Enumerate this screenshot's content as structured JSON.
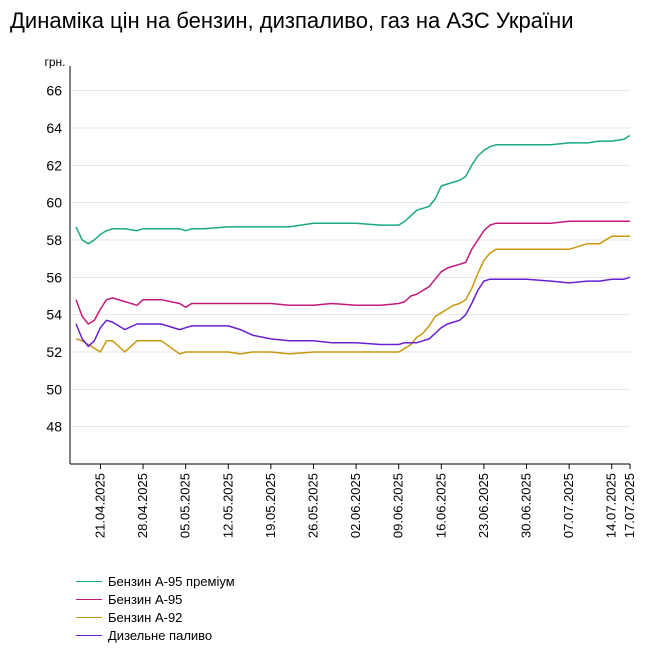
{
  "title": "Динаміка цін на бензин, дизпаливо, газ на АЗС України",
  "chart_data": {
    "type": "line",
    "title": "Динаміка цін на бензин, дизпаливо, газ на АЗС України",
    "ylabel": "грн.",
    "xlabel": "",
    "ylim": [
      46,
      67
    ],
    "yticks": [
      48,
      50,
      52,
      54,
      56,
      58,
      60,
      62,
      64,
      66
    ],
    "xlim": [
      "2025-04-16",
      "2025-07-17"
    ],
    "x_ticks": [
      "21.04.2025",
      "28.04.2025",
      "05.05.2025",
      "12.05.2025",
      "19.05.2025",
      "26.05.2025",
      "02.06.2025",
      "09.06.2025",
      "16.06.2025",
      "23.06.2025",
      "30.06.2025",
      "07.07.2025",
      "14.07.2025",
      "17.07.2025"
    ],
    "grid": "horizontal",
    "legend_position": "bottom",
    "x": [
      "2025-04-17",
      "2025-04-18",
      "2025-04-19",
      "2025-04-20",
      "2025-04-21",
      "2025-04-22",
      "2025-04-23",
      "2025-04-25",
      "2025-04-27",
      "2025-04-28",
      "2025-05-01",
      "2025-05-04",
      "2025-05-05",
      "2025-05-06",
      "2025-05-08",
      "2025-05-12",
      "2025-05-14",
      "2025-05-16",
      "2025-05-19",
      "2025-05-22",
      "2025-05-26",
      "2025-05-29",
      "2025-06-02",
      "2025-06-06",
      "2025-06-09",
      "2025-06-10",
      "2025-06-11",
      "2025-06-12",
      "2025-06-13",
      "2025-06-14",
      "2025-06-15",
      "2025-06-16",
      "2025-06-17",
      "2025-06-18",
      "2025-06-19",
      "2025-06-20",
      "2025-06-21",
      "2025-06-22",
      "2025-06-23",
      "2025-06-24",
      "2025-06-25",
      "2025-06-27",
      "2025-06-30",
      "2025-07-04",
      "2025-07-07",
      "2025-07-10",
      "2025-07-12",
      "2025-07-14",
      "2025-07-16",
      "2025-07-17"
    ],
    "series": [
      {
        "name": "Бензин А-95 преміум",
        "color": "#1aa984",
        "values": [
          58.7,
          58.0,
          57.8,
          58.0,
          58.3,
          58.5,
          58.6,
          58.6,
          58.5,
          58.6,
          58.6,
          58.6,
          58.5,
          58.6,
          58.6,
          58.7,
          58.7,
          58.7,
          58.7,
          58.7,
          58.9,
          58.9,
          58.9,
          58.8,
          58.8,
          59.0,
          59.3,
          59.6,
          59.7,
          59.8,
          60.2,
          60.9,
          61.0,
          61.1,
          61.2,
          61.4,
          62.0,
          62.5,
          62.8,
          63.0,
          63.1,
          63.1,
          63.1,
          63.1,
          63.2,
          63.2,
          63.3,
          63.3,
          63.4,
          63.6
        ]
      },
      {
        "name": "Бензин А-95",
        "color": "#c2197d",
        "values": [
          54.8,
          53.9,
          53.5,
          53.7,
          54.3,
          54.8,
          54.9,
          54.7,
          54.5,
          54.8,
          54.8,
          54.6,
          54.4,
          54.6,
          54.6,
          54.6,
          54.6,
          54.6,
          54.6,
          54.5,
          54.5,
          54.6,
          54.5,
          54.5,
          54.6,
          54.7,
          55.0,
          55.1,
          55.3,
          55.5,
          55.9,
          56.3,
          56.5,
          56.6,
          56.7,
          56.8,
          57.5,
          58.0,
          58.5,
          58.8,
          58.9,
          58.9,
          58.9,
          58.9,
          59.0,
          59.0,
          59.0,
          59.0,
          59.0,
          59.0
        ]
      },
      {
        "name": "Бензин А-92",
        "color": "#c9970e",
        "values": [
          52.7,
          52.6,
          52.4,
          52.2,
          52.0,
          52.6,
          52.6,
          52.0,
          52.6,
          52.6,
          52.6,
          51.9,
          52.0,
          52.0,
          52.0,
          52.0,
          51.9,
          52.0,
          52.0,
          51.9,
          52.0,
          52.0,
          52.0,
          52.0,
          52.0,
          52.2,
          52.4,
          52.8,
          53.0,
          53.4,
          53.9,
          54.1,
          54.3,
          54.5,
          54.6,
          54.8,
          55.4,
          56.2,
          56.9,
          57.3,
          57.5,
          57.5,
          57.5,
          57.5,
          57.5,
          57.8,
          57.8,
          58.2,
          58.2,
          58.2
        ]
      },
      {
        "name": "Дизельне паливо",
        "color": "#6a1fd0",
        "values": [
          53.5,
          52.7,
          52.3,
          52.6,
          53.3,
          53.7,
          53.6,
          53.2,
          53.5,
          53.5,
          53.5,
          53.2,
          53.3,
          53.4,
          53.4,
          53.4,
          53.2,
          52.9,
          52.7,
          52.6,
          52.6,
          52.5,
          52.5,
          52.4,
          52.4,
          52.5,
          52.5,
          52.5,
          52.6,
          52.7,
          53.0,
          53.3,
          53.5,
          53.6,
          53.7,
          54.0,
          54.6,
          55.3,
          55.8,
          55.9,
          55.9,
          55.9,
          55.9,
          55.8,
          55.7,
          55.8,
          55.8,
          55.9,
          55.9,
          56.0
        ]
      }
    ]
  }
}
